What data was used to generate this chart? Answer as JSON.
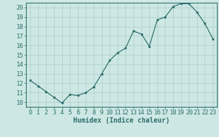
{
  "x": [
    0,
    1,
    2,
    3,
    4,
    5,
    6,
    7,
    8,
    9,
    10,
    11,
    12,
    13,
    14,
    15,
    16,
    17,
    18,
    19,
    20,
    21,
    22,
    23
  ],
  "y": [
    12.3,
    11.7,
    11.1,
    10.5,
    9.9,
    10.8,
    10.7,
    11.0,
    11.6,
    13.0,
    14.4,
    15.2,
    15.7,
    17.5,
    17.2,
    15.9,
    18.7,
    19.0,
    20.1,
    20.4,
    20.4,
    19.5,
    18.3,
    16.7
  ],
  "title": "",
  "xlabel": "Humidex (Indice chaleur)",
  "ylabel": "",
  "xlim": [
    -0.5,
    23.5
  ],
  "ylim": [
    9.5,
    20.5
  ],
  "yticks": [
    10,
    11,
    12,
    13,
    14,
    15,
    16,
    17,
    18,
    19,
    20
  ],
  "xticks": [
    0,
    1,
    2,
    3,
    4,
    5,
    6,
    7,
    8,
    9,
    10,
    11,
    12,
    13,
    14,
    15,
    16,
    17,
    18,
    19,
    20,
    21,
    22,
    23
  ],
  "line_color": "#2e6e6e",
  "marker_color": "#2e6e6e",
  "bg_color": "#cde8e4",
  "grid_color": "#b0d0cc",
  "label_fontsize": 7,
  "tick_fontsize": 6.5
}
